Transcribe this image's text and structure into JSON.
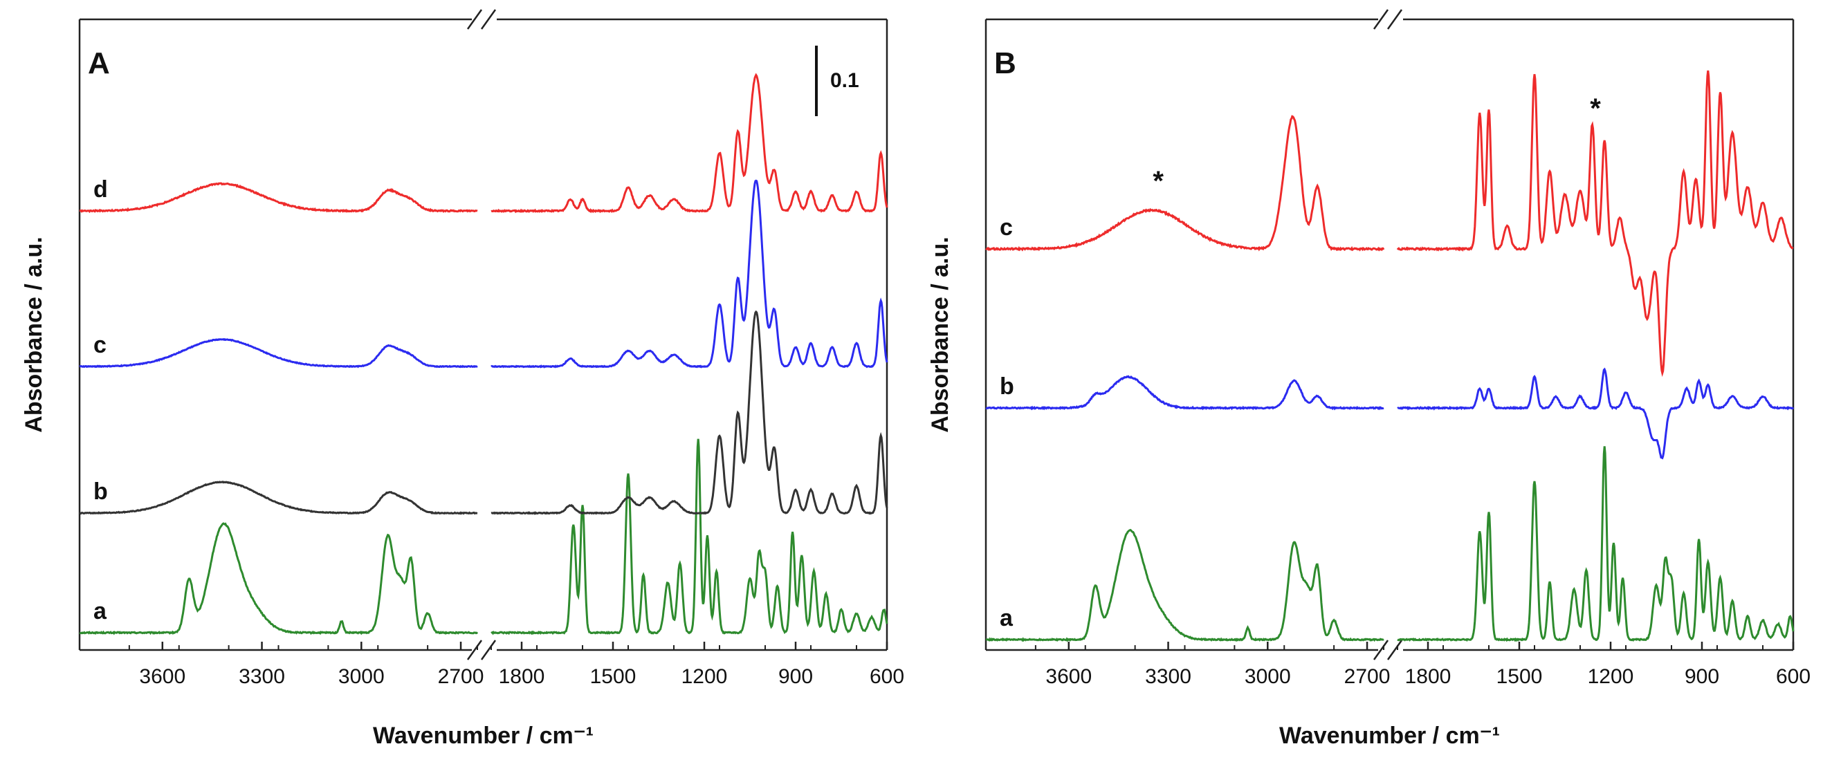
{
  "colors": {
    "green": "#2e8b2e",
    "black": "#333333",
    "blue": "#2b2bf0",
    "red": "#ee2b2b",
    "axis": "#222222"
  },
  "chart_data": [
    {
      "type": "line",
      "panel_label": "A",
      "xlabel": "Wavenumber / cm⁻¹",
      "ylabel": "Absorbance / a.u.",
      "xlim_segments": [
        [
          3850,
          2650
        ],
        [
          1900,
          600
        ]
      ],
      "xticks_left": [
        3600,
        3300,
        3000,
        2700
      ],
      "xticks_right": [
        1800,
        1500,
        1200,
        900,
        600
      ],
      "scale_bar_label": "0.1",
      "annotation": "",
      "series": [
        {
          "name": "a",
          "color": "green",
          "baseline": 0.0,
          "noise": 0.003,
          "offset_change_at": 1650,
          "peaks": [
            [
              3520,
              0.13,
              18
            ],
            [
              3420,
              0.25,
              55
            ],
            [
              3350,
              0.08,
              70
            ],
            [
              2920,
              0.25,
              25
            ],
            [
              2880,
              0.12,
              20
            ],
            [
              2850,
              0.18,
              15
            ],
            [
              2800,
              0.05,
              15
            ],
            [
              3060,
              0.03,
              8
            ],
            [
              1630,
              0.28,
              12
            ],
            [
              1600,
              0.33,
              10
            ],
            [
              1450,
              0.41,
              12
            ],
            [
              1400,
              0.15,
              10
            ],
            [
              1320,
              0.13,
              15
            ],
            [
              1280,
              0.18,
              12
            ],
            [
              1220,
              0.5,
              10
            ],
            [
              1190,
              0.25,
              10
            ],
            [
              1160,
              0.16,
              10
            ],
            [
              1050,
              0.14,
              15
            ],
            [
              1020,
              0.2,
              12
            ],
            [
              1000,
              0.15,
              12
            ],
            [
              960,
              0.12,
              12
            ],
            [
              910,
              0.26,
              10
            ],
            [
              880,
              0.2,
              12
            ],
            [
              840,
              0.16,
              12
            ],
            [
              800,
              0.1,
              12
            ],
            [
              750,
              0.06,
              12
            ],
            [
              700,
              0.05,
              15
            ],
            [
              650,
              0.04,
              15
            ],
            [
              610,
              0.06,
              10
            ]
          ]
        },
        {
          "name": "b",
          "color": "black",
          "baseline": 0.0,
          "noise": 0.002,
          "peaks": [
            [
              3420,
              0.08,
              160
            ],
            [
              2920,
              0.05,
              40
            ],
            [
              2860,
              0.03,
              40
            ],
            [
              1640,
              0.02,
              20
            ],
            [
              1450,
              0.04,
              30
            ],
            [
              1380,
              0.04,
              30
            ],
            [
              1300,
              0.03,
              30
            ],
            [
              1150,
              0.2,
              18
            ],
            [
              1090,
              0.25,
              15
            ],
            [
              1030,
              0.52,
              30
            ],
            [
              970,
              0.16,
              15
            ],
            [
              900,
              0.06,
              15
            ],
            [
              850,
              0.06,
              15
            ],
            [
              780,
              0.05,
              15
            ],
            [
              700,
              0.07,
              15
            ],
            [
              620,
              0.2,
              12
            ]
          ]
        },
        {
          "name": "c",
          "color": "blue",
          "baseline": 0.0,
          "noise": 0.002,
          "peaks": [
            [
              3420,
              0.07,
              160
            ],
            [
              2920,
              0.05,
              40
            ],
            [
              2860,
              0.03,
              40
            ],
            [
              1640,
              0.02,
              20
            ],
            [
              1450,
              0.04,
              30
            ],
            [
              1380,
              0.04,
              30
            ],
            [
              1300,
              0.03,
              30
            ],
            [
              1150,
              0.16,
              18
            ],
            [
              1090,
              0.22,
              15
            ],
            [
              1030,
              0.48,
              30
            ],
            [
              970,
              0.14,
              15
            ],
            [
              900,
              0.05,
              15
            ],
            [
              850,
              0.06,
              15
            ],
            [
              780,
              0.05,
              15
            ],
            [
              700,
              0.06,
              15
            ],
            [
              620,
              0.17,
              12
            ]
          ]
        },
        {
          "name": "d",
          "color": "red",
          "baseline": 0.0,
          "noise": 0.003,
          "peaks": [
            [
              3420,
              0.07,
              160
            ],
            [
              2920,
              0.05,
              40
            ],
            [
              2860,
              0.03,
              40
            ],
            [
              1640,
              0.03,
              15
            ],
            [
              1600,
              0.03,
              12
            ],
            [
              1450,
              0.06,
              20
            ],
            [
              1380,
              0.04,
              25
            ],
            [
              1300,
              0.03,
              25
            ],
            [
              1150,
              0.15,
              18
            ],
            [
              1090,
              0.2,
              15
            ],
            [
              1030,
              0.35,
              30
            ],
            [
              970,
              0.1,
              15
            ],
            [
              900,
              0.05,
              15
            ],
            [
              850,
              0.05,
              15
            ],
            [
              780,
              0.04,
              15
            ],
            [
              700,
              0.05,
              15
            ],
            [
              620,
              0.15,
              12
            ]
          ]
        }
      ]
    },
    {
      "type": "line",
      "panel_label": "B",
      "xlabel": "Wavenumber / cm⁻¹",
      "ylabel": "Absorbance / a.u.",
      "xlim_segments": [
        [
          3850,
          2650
        ],
        [
          1900,
          600
        ]
      ],
      "xticks_left": [
        3600,
        3300,
        3000,
        2700
      ],
      "xticks_right": [
        1800,
        1500,
        1200,
        900,
        600
      ],
      "scale_bar_label": "",
      "annotation": "*",
      "series": [
        {
          "name": "a",
          "color": "green",
          "baseline": 0.0,
          "noise": 0.003,
          "peaks": [
            [
              3520,
              0.13,
              18
            ],
            [
              3420,
              0.25,
              55
            ],
            [
              3350,
              0.08,
              70
            ],
            [
              2920,
              0.25,
              25
            ],
            [
              2880,
              0.12,
              20
            ],
            [
              2850,
              0.18,
              15
            ],
            [
              2800,
              0.05,
              15
            ],
            [
              3060,
              0.03,
              8
            ],
            [
              1630,
              0.28,
              12
            ],
            [
              1600,
              0.33,
              10
            ],
            [
              1450,
              0.41,
              12
            ],
            [
              1400,
              0.15,
              10
            ],
            [
              1320,
              0.13,
              15
            ],
            [
              1280,
              0.18,
              12
            ],
            [
              1220,
              0.5,
              10
            ],
            [
              1190,
              0.25,
              10
            ],
            [
              1160,
              0.16,
              10
            ],
            [
              1050,
              0.14,
              15
            ],
            [
              1020,
              0.2,
              12
            ],
            [
              1000,
              0.15,
              12
            ],
            [
              960,
              0.12,
              12
            ],
            [
              910,
              0.26,
              10
            ],
            [
              880,
              0.2,
              12
            ],
            [
              840,
              0.16,
              12
            ],
            [
              800,
              0.1,
              12
            ],
            [
              750,
              0.06,
              12
            ],
            [
              700,
              0.05,
              15
            ],
            [
              650,
              0.04,
              15
            ],
            [
              610,
              0.06,
              10
            ]
          ]
        },
        {
          "name": "b",
          "color": "blue",
          "baseline": 0.0,
          "noise": 0.003,
          "peaks": [
            [
              3520,
              0.02,
              20
            ],
            [
              3420,
              0.08,
              80
            ],
            [
              2920,
              0.07,
              30
            ],
            [
              2850,
              0.03,
              20
            ],
            [
              1630,
              0.05,
              12
            ],
            [
              1600,
              0.05,
              12
            ],
            [
              1450,
              0.08,
              12
            ],
            [
              1380,
              0.03,
              15
            ],
            [
              1300,
              0.03,
              15
            ],
            [
              1220,
              0.1,
              12
            ],
            [
              1150,
              0.04,
              15
            ],
            [
              1060,
              -0.08,
              20
            ],
            [
              1030,
              -0.12,
              15
            ],
            [
              950,
              0.05,
              15
            ],
            [
              910,
              0.07,
              12
            ],
            [
              880,
              0.06,
              12
            ],
            [
              800,
              0.03,
              20
            ],
            [
              700,
              0.03,
              20
            ]
          ]
        },
        {
          "name": "c",
          "color": "red",
          "baseline": 0.0,
          "noise": 0.004,
          "peaks": [
            [
              3350,
              0.1,
              150
            ],
            [
              2920,
              0.3,
              30
            ],
            [
              2950,
              0.1,
              30
            ],
            [
              2850,
              0.16,
              20
            ],
            [
              1630,
              0.35,
              12
            ],
            [
              1600,
              0.36,
              10
            ],
            [
              1540,
              0.06,
              15
            ],
            [
              1450,
              0.45,
              12
            ],
            [
              1400,
              0.2,
              15
            ],
            [
              1350,
              0.14,
              20
            ],
            [
              1300,
              0.15,
              20
            ],
            [
              1260,
              0.32,
              12
            ],
            [
              1220,
              0.28,
              12
            ],
            [
              1170,
              0.08,
              15
            ],
            [
              1120,
              -0.1,
              15
            ],
            [
              1080,
              -0.18,
              20
            ],
            [
              1030,
              -0.32,
              15
            ],
            [
              960,
              0.2,
              15
            ],
            [
              920,
              0.18,
              15
            ],
            [
              880,
              0.46,
              12
            ],
            [
              840,
              0.4,
              12
            ],
            [
              800,
              0.3,
              20
            ],
            [
              750,
              0.16,
              20
            ],
            [
              700,
              0.12,
              20
            ],
            [
              640,
              0.08,
              20
            ]
          ]
        }
      ]
    }
  ]
}
